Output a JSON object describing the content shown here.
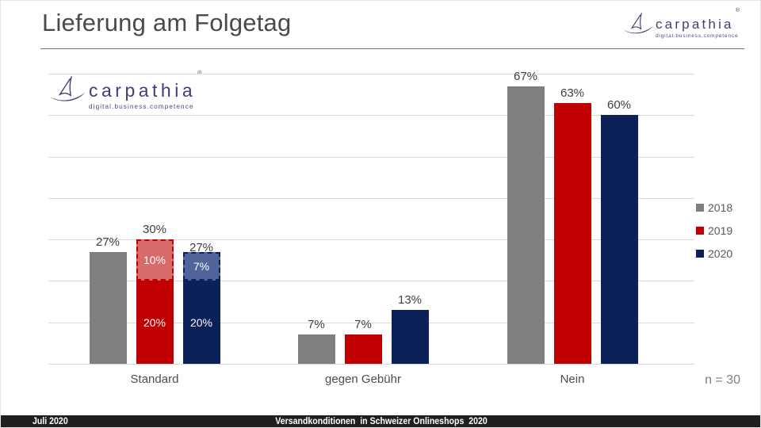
{
  "title": "Lieferung am Folgetag",
  "logo": {
    "name": "carpathia",
    "reg": "®",
    "tagline": "digital.business.competence"
  },
  "note": "n = 30",
  "footer": {
    "left": "Juli 2020",
    "center": "Versandkonditionen  in Schweizer Onlineshops  2020"
  },
  "chart_data": {
    "type": "bar",
    "title": "Lieferung am Folgetag",
    "categories": [
      "Standard",
      "gegen Gebühr",
      "Nein"
    ],
    "unit": "%",
    "ylim": [
      0,
      70
    ],
    "grid_step": 10,
    "grid": true,
    "legend_position": "right",
    "note": "n = 30",
    "colors": {
      "grid": "#d9d9d9",
      "value_label": "#3f3f3f",
      "inner_label": "#ffffff"
    },
    "series": [
      {
        "name": "2018",
        "color": "#7f7f7f",
        "data": [
          {
            "total": 27,
            "label": "27%"
          },
          {
            "total": 7,
            "label": "7%"
          },
          {
            "total": 67,
            "label": "67%"
          }
        ]
      },
      {
        "name": "2019",
        "color": "#c00000",
        "light_color": "#d96a6a",
        "data": [
          {
            "total": 30,
            "label": "30%",
            "segments": [
              {
                "value": 20,
                "label": "20%",
                "style": "solid"
              },
              {
                "value": 10,
                "label": "10%",
                "style": "dashed"
              }
            ]
          },
          {
            "total": 7,
            "label": "7%"
          },
          {
            "total": 63,
            "label": "63%"
          }
        ]
      },
      {
        "name": "2020",
        "color": "#0b2158",
        "light_color": "#51659b",
        "data": [
          {
            "total": 27,
            "label": "27%",
            "dy": 7,
            "segments": [
              {
                "value": 20,
                "label": "20%",
                "style": "solid"
              },
              {
                "value": 7,
                "label": "7%",
                "style": "dashed"
              }
            ]
          },
          {
            "total": 13,
            "label": "13%"
          },
          {
            "total": 60,
            "label": "60%"
          }
        ]
      }
    ]
  }
}
